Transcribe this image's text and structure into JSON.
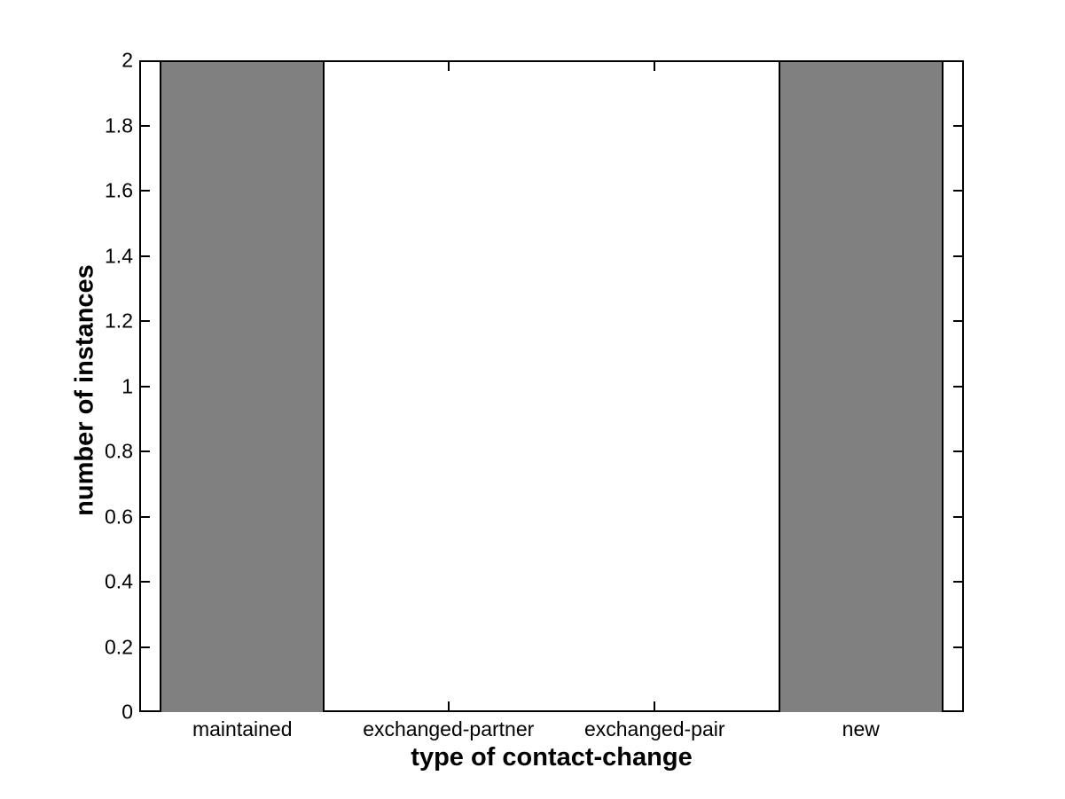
{
  "chart_data": {
    "type": "bar",
    "title": "",
    "xlabel": "type of contact-change",
    "ylabel": "number of instances",
    "categories": [
      "maintained",
      "exchanged-partner",
      "exchanged-pair",
      "new"
    ],
    "values": [
      2,
      0,
      0,
      2
    ],
    "ylim": [
      0,
      2
    ],
    "yticks": [
      0,
      0.2,
      0.4,
      0.6,
      0.8,
      1,
      1.2,
      1.4,
      1.6,
      1.8,
      2
    ],
    "ytick_labels": [
      "0",
      "0.2",
      "0.4",
      "0.6",
      "0.8",
      "1",
      "1.2",
      "1.4",
      "1.6",
      "1.8",
      "2"
    ],
    "bar_color": "#808080",
    "bar_edge_color": "#000000",
    "axis_color": "#000000",
    "background_color": "#ffffff",
    "bar_rel_width": 0.8,
    "grid": false,
    "legend": null
  }
}
